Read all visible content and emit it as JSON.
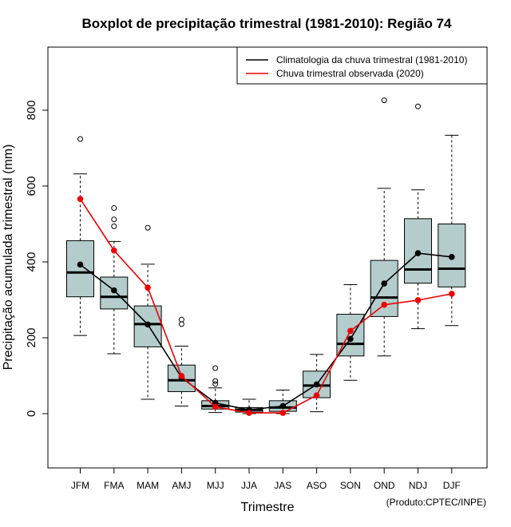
{
  "chart_data": {
    "type": "boxplot",
    "title": "Boxplot de precipitação trimestral (1981-2010): Região 74",
    "xlabel": "Trimestre",
    "ylabel": "Precipitação acumulada trimestral (mm)",
    "credit": "(Produto:CPTEC/INPE)",
    "ylim": [
      -140,
      960
    ],
    "yticks": [
      0,
      200,
      400,
      600,
      800
    ],
    "categories": [
      "JFM",
      "FMA",
      "MAM",
      "AMJ",
      "MJJ",
      "JJA",
      "JAS",
      "ASO",
      "SON",
      "OND",
      "NDJ",
      "DJF"
    ],
    "boxes": [
      {
        "min": 206,
        "q1": 308,
        "median": 372,
        "q3": 456,
        "max": 632,
        "outliers": [
          724
        ]
      },
      {
        "min": 158,
        "q1": 276,
        "median": 308,
        "q3": 360,
        "max": 454,
        "outliers": [
          494,
          512,
          542
        ]
      },
      {
        "min": 38,
        "q1": 176,
        "median": 236,
        "q3": 284,
        "max": 394,
        "outliers": [
          490
        ]
      },
      {
        "min": 20,
        "q1": 58,
        "median": 88,
        "q3": 128,
        "max": 178,
        "outliers": [
          236,
          248
        ]
      },
      {
        "min": 3,
        "q1": 12,
        "median": 20,
        "q3": 34,
        "max": 68,
        "outliers": [
          78,
          86,
          120
        ]
      },
      {
        "min": 0,
        "q1": 4,
        "median": 10,
        "q3": 16,
        "max": 38,
        "outliers": []
      },
      {
        "min": 0,
        "q1": 6,
        "median": 16,
        "q3": 34,
        "max": 62,
        "outliers": []
      },
      {
        "min": 5,
        "q1": 42,
        "median": 74,
        "q3": 112,
        "max": 156,
        "outliers": []
      },
      {
        "min": 88,
        "q1": 152,
        "median": 184,
        "q3": 262,
        "max": 340,
        "outliers": []
      },
      {
        "min": 152,
        "q1": 256,
        "median": 306,
        "q3": 404,
        "max": 594,
        "outliers": [
          826
        ]
      },
      {
        "min": 224,
        "q1": 344,
        "median": 380,
        "q3": 514,
        "max": 590,
        "outliers": [
          810
        ]
      },
      {
        "min": 232,
        "q1": 334,
        "median": 382,
        "q3": 500,
        "max": 734,
        "outliers": []
      }
    ],
    "series": [
      {
        "name": "Climatologia da chuva trimestral (1981-2010)",
        "color": "#000000",
        "values": [
          393,
          325,
          235,
          95,
          28,
          10,
          20,
          77,
          197,
          343,
          423,
          413
        ]
      },
      {
        "name": "Chuva trimestral observada (2020)",
        "color": "#ee0000",
        "values": [
          566,
          430,
          332,
          99,
          18,
          2,
          2,
          48,
          218,
          287,
          299,
          316
        ]
      }
    ],
    "box_fill": "#b4cccc",
    "legend_position": "top-right"
  }
}
